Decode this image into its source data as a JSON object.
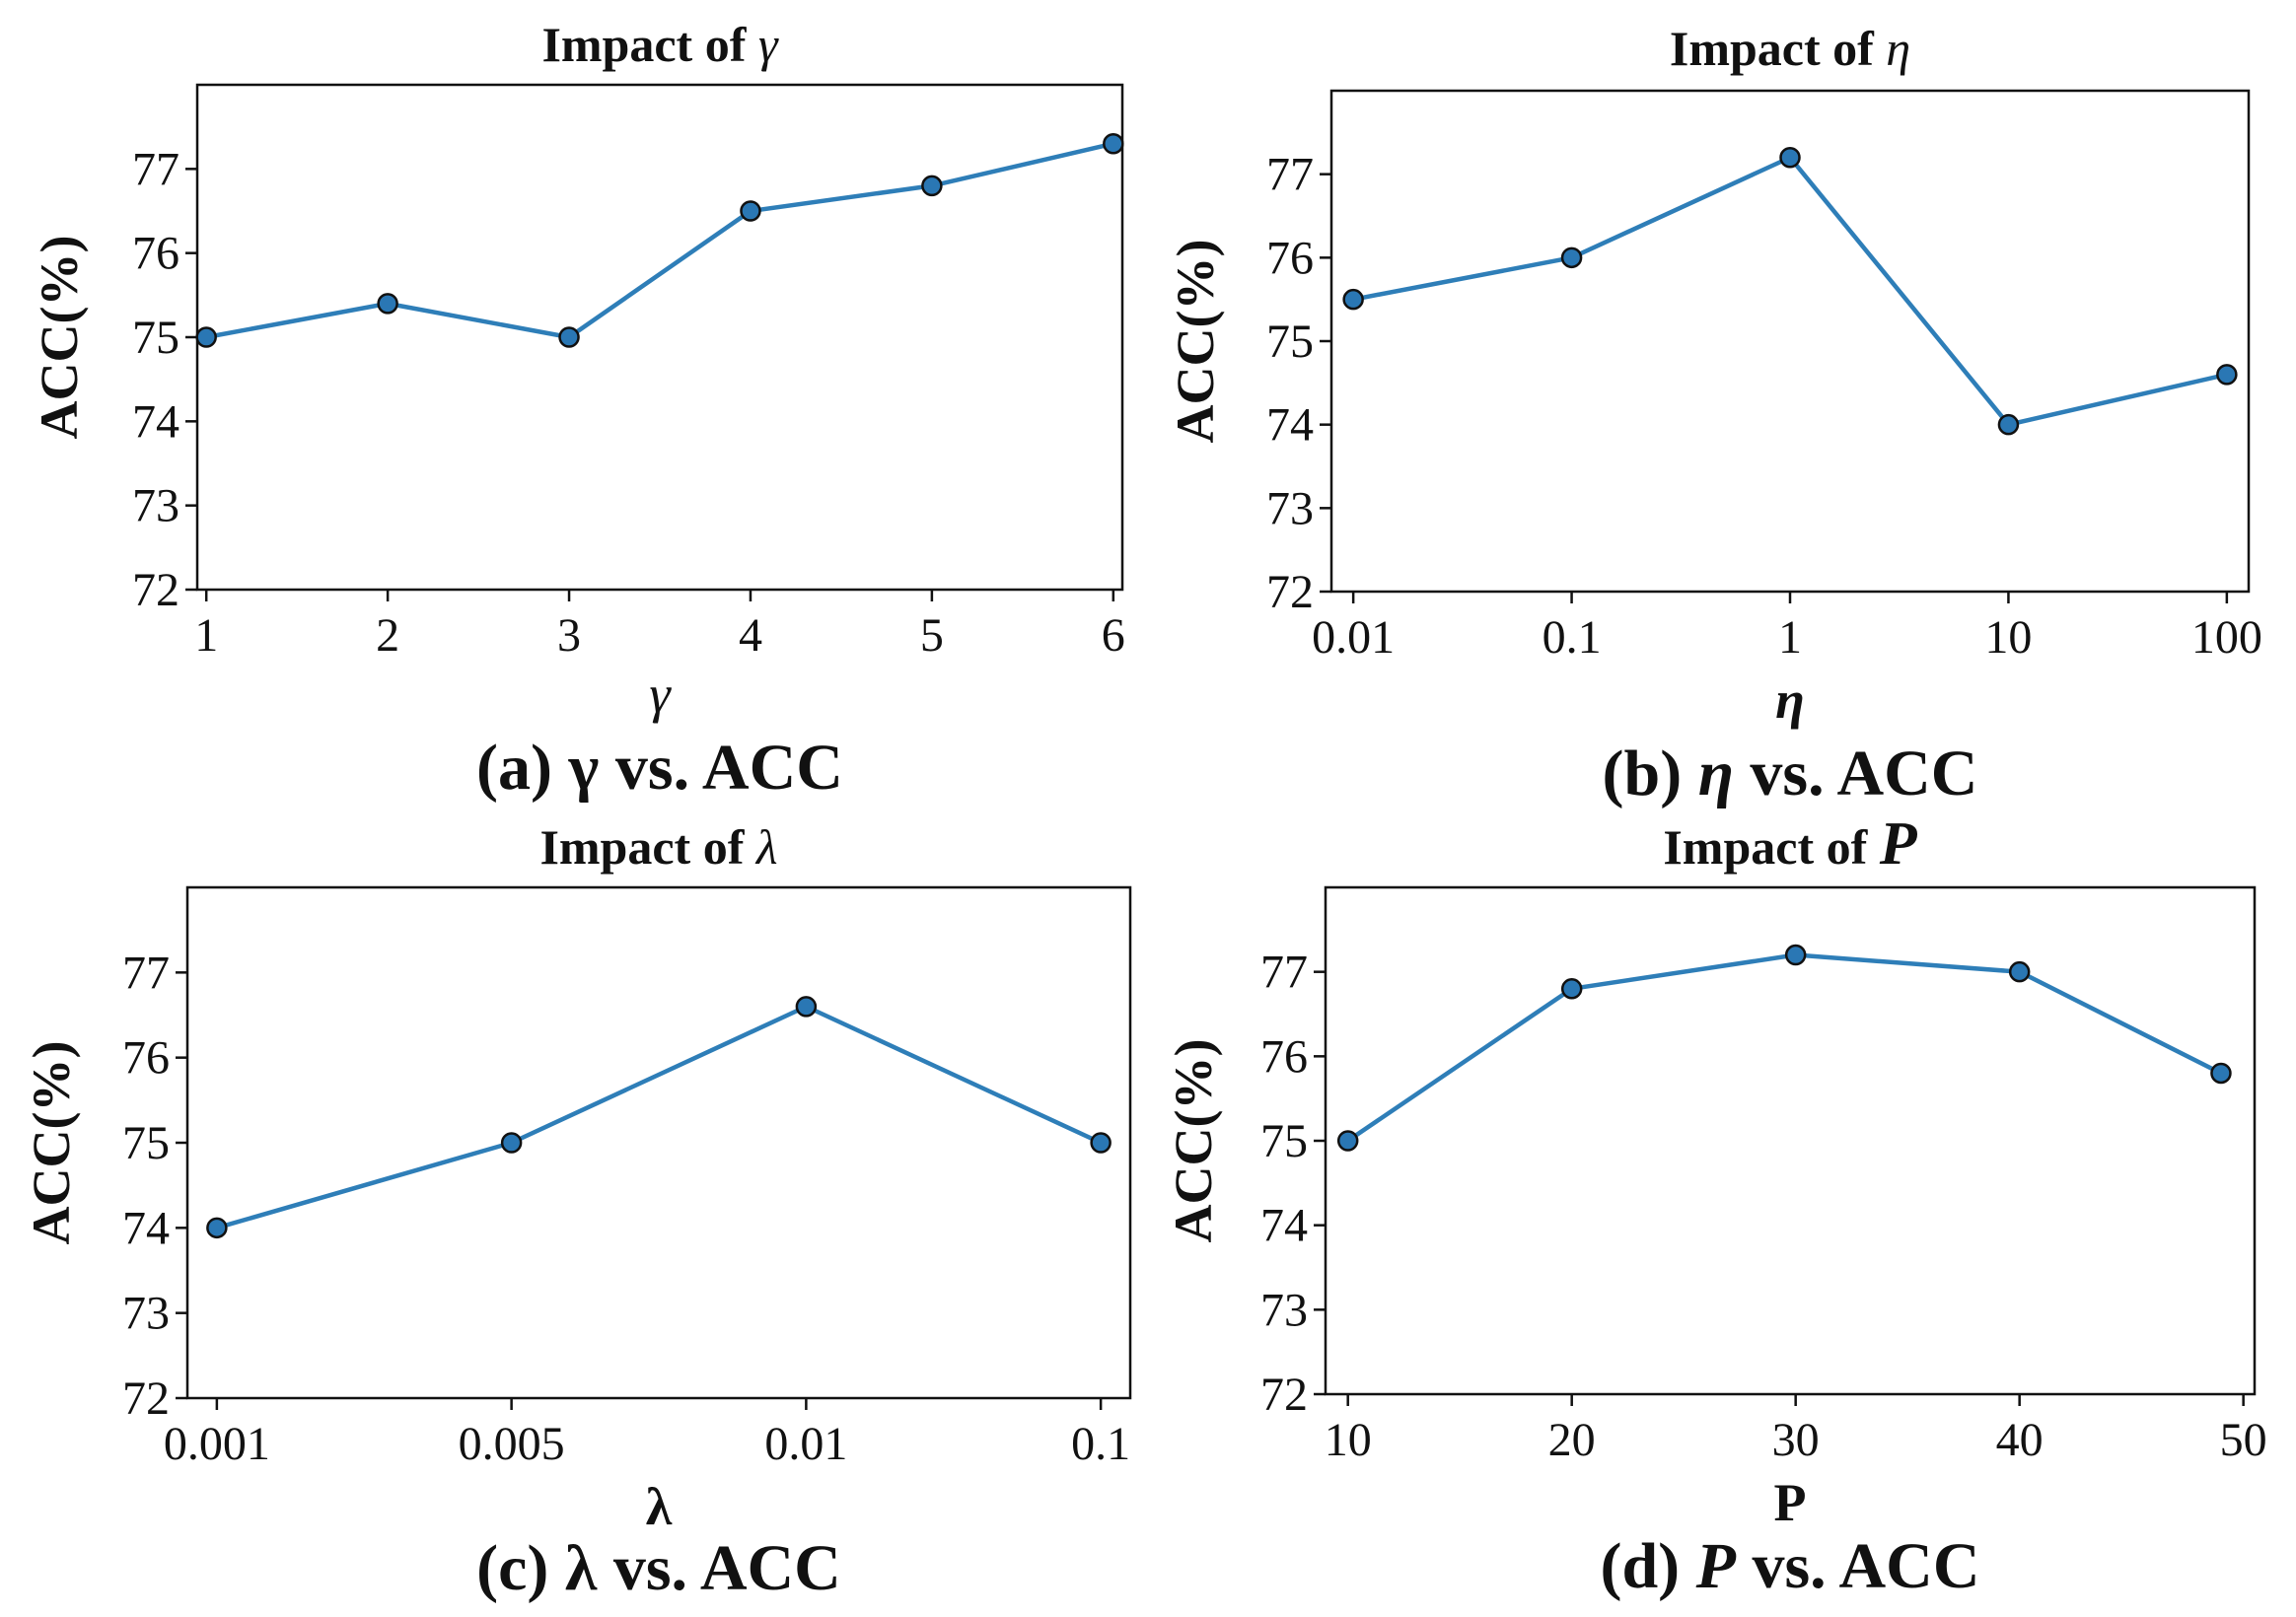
{
  "colors": {
    "line": "#2e7eb8",
    "marker_fill": "#2a77b4",
    "marker_edge": "#111111",
    "axis": "#111111",
    "background": "#ffffff"
  },
  "chart_data": [
    {
      "type": "line",
      "title_prefix": "Impact of ",
      "title_symbol": "γ",
      "xlabel": "γ",
      "ylabel": "ACC(%)",
      "caption_prefix": "(a) ",
      "caption_symbol": "γ",
      "caption_suffix": " vs. ACC",
      "categories": [
        "1",
        "2",
        "3",
        "4",
        "5",
        "6"
      ],
      "x": [
        1,
        2,
        3,
        4,
        5,
        6
      ],
      "values": [
        75.0,
        75.4,
        75.0,
        76.5,
        76.8,
        77.3
      ],
      "xlim": [
        0.95,
        6.05
      ],
      "ylim": [
        72,
        78
      ],
      "yticks": [
        72,
        73,
        74,
        75,
        76,
        77
      ],
      "grid": false
    },
    {
      "type": "line",
      "title_prefix": "Impact of ",
      "title_symbol": "η",
      "xlabel": "η",
      "ylabel": "ACC(%)",
      "caption_prefix": "(b) ",
      "caption_symbol": "η",
      "caption_suffix": " vs. ACC",
      "categories": [
        "0.01",
        "0.1",
        "1",
        "10",
        "100"
      ],
      "x": [
        0,
        1,
        2,
        3,
        4
      ],
      "values": [
        75.5,
        76.0,
        77.2,
        74.0,
        74.6
      ],
      "xlim": [
        -0.1,
        4.1
      ],
      "ylim": [
        72,
        78
      ],
      "yticks": [
        72,
        73,
        74,
        75,
        76,
        77
      ],
      "grid": false
    },
    {
      "type": "line",
      "title_prefix": "Impact of  ",
      "title_symbol": "λ",
      "xlabel": "λ",
      "ylabel": "ACC(%)",
      "caption_prefix": "(c) ",
      "caption_symbol": "λ",
      "caption_suffix": " vs. ACC",
      "categories": [
        "0.001",
        "0.005",
        "0.01",
        "0.1"
      ],
      "x": [
        0,
        1,
        2,
        3
      ],
      "values": [
        74.0,
        75.0,
        76.6,
        75.0
      ],
      "xlim": [
        -0.1,
        3.1
      ],
      "ylim": [
        72,
        78
      ],
      "yticks": [
        72,
        73,
        74,
        75,
        76,
        77
      ],
      "grid": false
    },
    {
      "type": "line",
      "title_prefix": "Impact of ",
      "title_symbol": "P",
      "xlabel": "P",
      "ylabel": "ACC(%)",
      "caption_prefix": "(d) ",
      "caption_symbol": "P",
      "caption_suffix": " vs. ACC",
      "categories": [
        "10",
        "20",
        "30",
        "40",
        "50"
      ],
      "x": [
        10,
        20,
        30,
        40,
        49
      ],
      "values": [
        75.0,
        76.8,
        77.2,
        77.0,
        75.8
      ],
      "xtick_values": [
        10,
        20,
        30,
        40,
        50
      ],
      "xlim": [
        9,
        50.5
      ],
      "ylim": [
        72,
        78
      ],
      "yticks": [
        72,
        73,
        74,
        75,
        76,
        77
      ],
      "grid": false
    }
  ]
}
